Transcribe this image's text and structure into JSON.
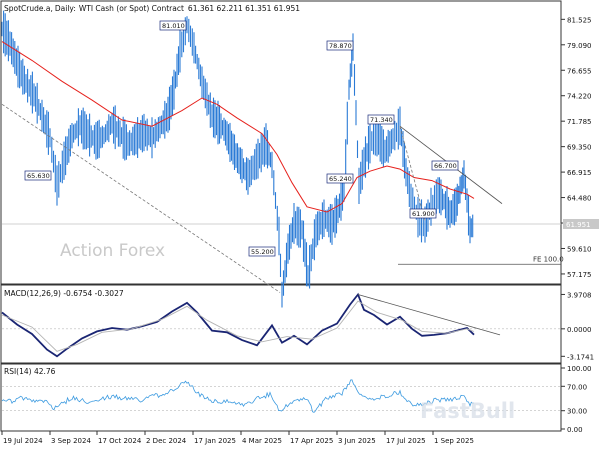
{
  "header": {
    "symbol": "SpotCrude.a",
    "timeframe": "Daily",
    "description": "WTI Cash (or Spot) Contract",
    "ohlc": "61.361 62.211 61.351 61.951"
  },
  "watermark": "Action Forex",
  "logo_text": "FastBull",
  "chart_data": [
    {
      "type": "line",
      "name": "price",
      "x": [
        "19 Jul 2024",
        "3 Sep 2024",
        "17 Oct 2024",
        "2 Dec 2024",
        "17 Jan 2025",
        "4 Mar 2025",
        "17 Apr 2025",
        "3 Jun 2025",
        "17 Jul 2025",
        "1 Sep 2025"
      ],
      "y_ticks": [
        "81.525",
        "79.090",
        "76.655",
        "74.220",
        "71.785",
        "69.350",
        "66.915",
        "64.480",
        "62.045",
        "59.610",
        "57.175"
      ],
      "ylim": [
        56.5,
        82.8
      ],
      "current_price_label": "61.951",
      "series": [
        {
          "name": "",
          "color": "#2b7bd6",
          "points": [
            [
              0,
              80.6
            ],
            [
              8,
              79.2
            ],
            [
              16,
              77.0
            ],
            [
              24,
              75.4
            ],
            [
              32,
              74.3
            ],
            [
              40,
              72.3
            ],
            [
              48,
              70.2
            ],
            [
              55,
              65.63
            ],
            [
              62,
              68.0
            ],
            [
              70,
              70.4
            ],
            [
              78,
              71.4
            ],
            [
              86,
              70.6
            ],
            [
              94,
              69.9
            ],
            [
              102,
              70.4
            ],
            [
              110,
              71.6
            ],
            [
              118,
              70.6
            ],
            [
              126,
              69.6
            ],
            [
              134,
              70.1
            ],
            [
              142,
              70.7
            ],
            [
              150,
              70.2
            ],
            [
              158,
              71.2
            ],
            [
              166,
              72.4
            ],
            [
              172,
              74.8
            ],
            [
              178,
              78.5
            ],
            [
              185,
              81.01
            ],
            [
              192,
              78.8
            ],
            [
              200,
              75.5
            ],
            [
              210,
              72.3
            ],
            [
              222,
              71.0
            ],
            [
              234,
              68.5
            ],
            [
              246,
              66.5
            ],
            [
              256,
              68.2
            ],
            [
              264,
              69.6
            ],
            [
              270,
              67.6
            ],
            [
              277,
              60.8
            ],
            [
              280,
              55.2
            ],
            [
              286,
              59.6
            ],
            [
              292,
              62.0
            ],
            [
              300,
              61.4
            ],
            [
              306,
              57.0
            ],
            [
              314,
              61.3
            ],
            [
              322,
              62.5
            ],
            [
              330,
              61.9
            ],
            [
              336,
              63.2
            ],
            [
              342,
              65.2
            ],
            [
              347,
              74.8
            ],
            [
              351,
              78.87
            ],
            [
              354,
              72.6
            ],
            [
              357,
              65.6
            ],
            [
              362,
              67.9
            ],
            [
              368,
              69.7
            ],
            [
              375,
              70.4
            ],
            [
              383,
              68.9
            ],
            [
              391,
              70.1
            ],
            [
              398,
              71.34
            ],
            [
              404,
              66.9
            ],
            [
              409,
              64.5
            ],
            [
              416,
              62.6
            ],
            [
              423,
              61.9
            ],
            [
              429,
              63.6
            ],
            [
              436,
              64.9
            ],
            [
              442,
              64.1
            ],
            [
              448,
              62.9
            ],
            [
              454,
              63.8
            ],
            [
              458,
              65.2
            ],
            [
              462,
              66.7
            ],
            [
              465,
              64.2
            ],
            [
              468,
              61.4
            ],
            [
              472,
              61.95
            ]
          ]
        },
        {
          "name": "",
          "color": "#e6211c",
          "points": [
            [
              0,
              79.4
            ],
            [
              30,
              77.6
            ],
            [
              60,
              75.6
            ],
            [
              90,
              73.8
            ],
            [
              120,
              71.9
            ],
            [
              150,
              71.3
            ],
            [
              180,
              72.8
            ],
            [
              200,
              74.0
            ],
            [
              215,
              73.4
            ],
            [
              235,
              72.1
            ],
            [
              260,
              70.6
            ],
            [
              275,
              68.6
            ],
            [
              290,
              65.9
            ],
            [
              305,
              63.6
            ],
            [
              325,
              63.1
            ],
            [
              340,
              63.9
            ],
            [
              355,
              66.4
            ],
            [
              368,
              67.0
            ],
            [
              385,
              67.5
            ],
            [
              398,
              67.2
            ],
            [
              412,
              66.4
            ],
            [
              430,
              66.1
            ],
            [
              448,
              65.3
            ],
            [
              465,
              64.8
            ],
            [
              472,
              64.4
            ]
          ]
        }
      ],
      "annotations": [
        "81.010",
        "65.630",
        "55.200",
        "78.870",
        "65.240",
        "71.340",
        "66.700",
        "61.900"
      ],
      "fe_label": "FE 100.0",
      "fe_value": 58.1
    },
    {
      "type": "line",
      "title": "MACD(12,26,9) -0.6754 -0.3027",
      "y_ticks": [
        "3.9708",
        "0.0000",
        "-3.1741"
      ],
      "ylim": [
        -3.6,
        4.6
      ],
      "series": [
        {
          "name": "",
          "color": "#1a2573",
          "points": [
            [
              0,
              1.9
            ],
            [
              15,
              0.5
            ],
            [
              30,
              -0.6
            ],
            [
              45,
              -2.4
            ],
            [
              55,
              -3.17
            ],
            [
              65,
              -2.3
            ],
            [
              80,
              -1.1
            ],
            [
              95,
              -0.3
            ],
            [
              110,
              0.1
            ],
            [
              125,
              -0.1
            ],
            [
              140,
              0.3
            ],
            [
              155,
              0.8
            ],
            [
              170,
              2.0
            ],
            [
              185,
              3.0
            ],
            [
              195,
              1.9
            ],
            [
              210,
              -0.2
            ],
            [
              225,
              -0.4
            ],
            [
              240,
              -1.3
            ],
            [
              255,
              -1.9
            ],
            [
              270,
              0.4
            ],
            [
              280,
              -1.6
            ],
            [
              292,
              -0.8
            ],
            [
              305,
              -1.8
            ],
            [
              320,
              -0.2
            ],
            [
              335,
              0.6
            ],
            [
              348,
              2.8
            ],
            [
              356,
              3.97
            ],
            [
              362,
              2.2
            ],
            [
              372,
              1.6
            ],
            [
              385,
              0.5
            ],
            [
              398,
              1.4
            ],
            [
              410,
              0.0
            ],
            [
              420,
              -0.8
            ],
            [
              432,
              -0.7
            ],
            [
              445,
              -0.5
            ],
            [
              458,
              -0.1
            ],
            [
              465,
              0.1
            ],
            [
              472,
              -0.675
            ]
          ]
        },
        {
          "name": "",
          "color": "#b4b4b4",
          "points": [
            [
              0,
              1.6
            ],
            [
              30,
              0.2
            ],
            [
              55,
              -2.6
            ],
            [
              75,
              -1.8
            ],
            [
              100,
              -0.4
            ],
            [
              130,
              0.0
            ],
            [
              160,
              1.1
            ],
            [
              185,
              2.6
            ],
            [
              205,
              1.0
            ],
            [
              235,
              -0.8
            ],
            [
              260,
              -1.5
            ],
            [
              285,
              -0.9
            ],
            [
              310,
              -1.2
            ],
            [
              335,
              0.1
            ],
            [
              356,
              3.2
            ],
            [
              375,
              1.9
            ],
            [
              400,
              1.0
            ],
            [
              420,
              -0.3
            ],
            [
              445,
              -0.5
            ],
            [
              465,
              0.0
            ],
            [
              472,
              -0.303
            ]
          ]
        }
      ]
    },
    {
      "type": "line",
      "title": "RSI(14) 42.76",
      "y_ticks": [
        "100.00",
        "70.00",
        "30.00",
        "0.00"
      ],
      "ylim": [
        0,
        100
      ],
      "series": [
        {
          "name": "",
          "color": "#3d9be0",
          "points": [
            [
              0,
              50
            ],
            [
              10,
              44
            ],
            [
              20,
              52
            ],
            [
              30,
              46
            ],
            [
              40,
              49
            ],
            [
              52,
              33
            ],
            [
              58,
              39
            ],
            [
              70,
              52
            ],
            [
              82,
              45
            ],
            [
              95,
              48
            ],
            [
              110,
              54
            ],
            [
              125,
              50
            ],
            [
              140,
              47
            ],
            [
              155,
              55
            ],
            [
              170,
              62
            ],
            [
              185,
              79
            ],
            [
              195,
              60
            ],
            [
              210,
              44
            ],
            [
              225,
              47
            ],
            [
              240,
              38
            ],
            [
              255,
              50
            ],
            [
              268,
              57
            ],
            [
              278,
              30
            ],
            [
              290,
              44
            ],
            [
              303,
              52
            ],
            [
              312,
              28
            ],
            [
              325,
              52
            ],
            [
              340,
              58
            ],
            [
              350,
              80
            ],
            [
              356,
              64
            ],
            [
              362,
              52
            ],
            [
              372,
              48
            ],
            [
              385,
              55
            ],
            [
              398,
              60
            ],
            [
              408,
              42
            ],
            [
              420,
              40
            ],
            [
              432,
              47
            ],
            [
              444,
              48
            ],
            [
              456,
              50
            ],
            [
              462,
              56
            ],
            [
              468,
              40
            ],
            [
              472,
              42.76
            ]
          ]
        }
      ]
    }
  ]
}
